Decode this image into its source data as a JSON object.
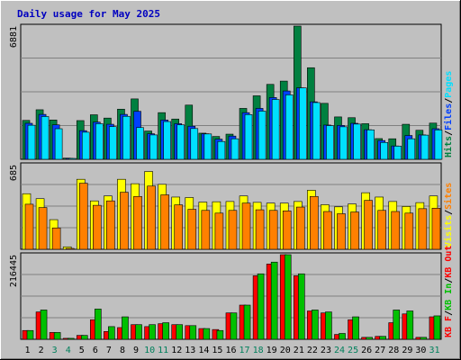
{
  "title": "Daily usage for May 2025",
  "colors": {
    "background": "#c0c0c0",
    "panel": "#c0c0c0",
    "hits": "#008040",
    "files": "#0040ff",
    "pages": "#00e0ff",
    "visits": "#ffff00",
    "sites": "#ff8000",
    "kbin": "#00c000",
    "kbout": "#ff0000",
    "title": "#0000c0",
    "weekend_day": "#00805c",
    "weekday": "#000000"
  },
  "chart_data": [
    {
      "type": "bar",
      "panel": "top",
      "scale_label": "6881",
      "ylim": [
        0,
        6881
      ],
      "legend": [
        {
          "text": "Hits",
          "color_key": "hits"
        },
        {
          "text": "/",
          "color_key": "weekday"
        },
        {
          "text": "Files",
          "color_key": "files"
        },
        {
          "text": "/",
          "color_key": "weekday"
        },
        {
          "text": "Pages",
          "color_key": "pages"
        }
      ],
      "series": [
        {
          "name": "Hits",
          "color_key": "hits",
          "values": [
            2010,
            2560,
            2030,
            60,
            2000,
            2300,
            2130,
            2590,
            3120,
            1460,
            2410,
            2080,
            2800,
            1350,
            1180,
            1300,
            2630,
            3280,
            3870,
            4040,
            6881,
            4730,
            2890,
            2190,
            2150,
            1840,
            1070,
            1060,
            1810,
            1500,
            1870
          ]
        },
        {
          "name": "Files",
          "color_key": "files",
          "values": [
            1860,
            2320,
            1780,
            40,
            1480,
            1920,
            1810,
            2320,
            2480,
            1320,
            2030,
            1840,
            1710,
            1320,
            1040,
            1200,
            2410,
            2630,
            3190,
            3530,
            3690,
            2970,
            1770,
            1750,
            1860,
            1530,
            970,
            690,
            1230,
            1260,
            1580
          ]
        },
        {
          "name": "Pages",
          "color_key": "pages",
          "values": [
            1760,
            2210,
            1580,
            20,
            1400,
            1840,
            1690,
            2220,
            1640,
            1260,
            1950,
            1780,
            1590,
            1310,
            920,
            1060,
            2310,
            2490,
            3090,
            3330,
            3690,
            2930,
            1740,
            1680,
            1820,
            1520,
            870,
            680,
            1060,
            1250,
            1520
          ]
        }
      ]
    },
    {
      "type": "bar",
      "panel": "middle",
      "scale_label": "685",
      "ylim": [
        0,
        685
      ],
      "legend": [
        {
          "text": "Visits",
          "color_key": "visits"
        },
        {
          "text": "/",
          "color_key": "weekday"
        },
        {
          "text": "Sites",
          "color_key": "sites"
        }
      ],
      "series": [
        {
          "name": "Visits",
          "color_key": "visits",
          "values": [
            450,
            410,
            240,
            20,
            567,
            392,
            432,
            567,
            531,
            630,
            526,
            423,
            419,
            382,
            385,
            387,
            432,
            380,
            374,
            374,
            387,
            478,
            361,
            344,
            367,
            458,
            423,
            387,
            347,
            378,
            432
          ]
        },
        {
          "name": "Sites",
          "color_key": "sites",
          "values": [
            365,
            338,
            173,
            5,
            535,
            356,
            392,
            462,
            428,
            512,
            441,
            360,
            324,
            315,
            293,
            315,
            374,
            320,
            315,
            311,
            342,
            428,
            306,
            288,
            302,
            396,
            315,
            306,
            293,
            329,
            333
          ]
        }
      ]
    },
    {
      "type": "bar",
      "panel": "bottom",
      "scale_label": "216445",
      "ylim": [
        0,
        216445
      ],
      "legend": [
        {
          "text": "KB F",
          "color_key": "kbout"
        },
        {
          "text": "/",
          "color_key": "weekday"
        },
        {
          "text": "KB In",
          "color_key": "kbin"
        },
        {
          "text": "/",
          "color_key": "weekday"
        },
        {
          "text": "KB Out",
          "color_key": "kbout"
        }
      ],
      "series": [
        {
          "name": "KB F",
          "color_key": "kbout",
          "values": [
            22500,
            70000,
            17500,
            2500,
            10000,
            50000,
            20000,
            30000,
            37500,
            32500,
            40000,
            37500,
            35000,
            27500,
            25000,
            67500,
            87500,
            162500,
            192500,
            216445,
            162500,
            72500,
            67500,
            12500,
            50000,
            5000,
            7500,
            42500,
            65000,
            5000,
            57500
          ]
        },
        {
          "name": "KB In",
          "color_key": "kbin",
          "values": [
            22500,
            75000,
            17500,
            2500,
            10000,
            77500,
            32500,
            57500,
            37500,
            37500,
            42500,
            37500,
            35000,
            27500,
            22500,
            67500,
            87500,
            167500,
            197500,
            216445,
            167500,
            75000,
            70000,
            15000,
            57500,
            5000,
            7500,
            75000,
            72500,
            5000,
            60000
          ]
        }
      ]
    }
  ],
  "x_axis": {
    "days": [
      "1",
      "2",
      "3",
      "4",
      "5",
      "6",
      "7",
      "8",
      "9",
      "10",
      "11",
      "12",
      "13",
      "14",
      "15",
      "16",
      "17",
      "18",
      "19",
      "20",
      "21",
      "22",
      "23",
      "24",
      "25",
      "26",
      "27",
      "28",
      "29",
      "30",
      "31"
    ],
    "weekend": [
      false,
      false,
      true,
      true,
      false,
      false,
      false,
      false,
      false,
      true,
      true,
      false,
      false,
      false,
      false,
      false,
      true,
      true,
      false,
      false,
      false,
      false,
      false,
      true,
      true,
      false,
      false,
      false,
      false,
      false,
      true
    ]
  }
}
